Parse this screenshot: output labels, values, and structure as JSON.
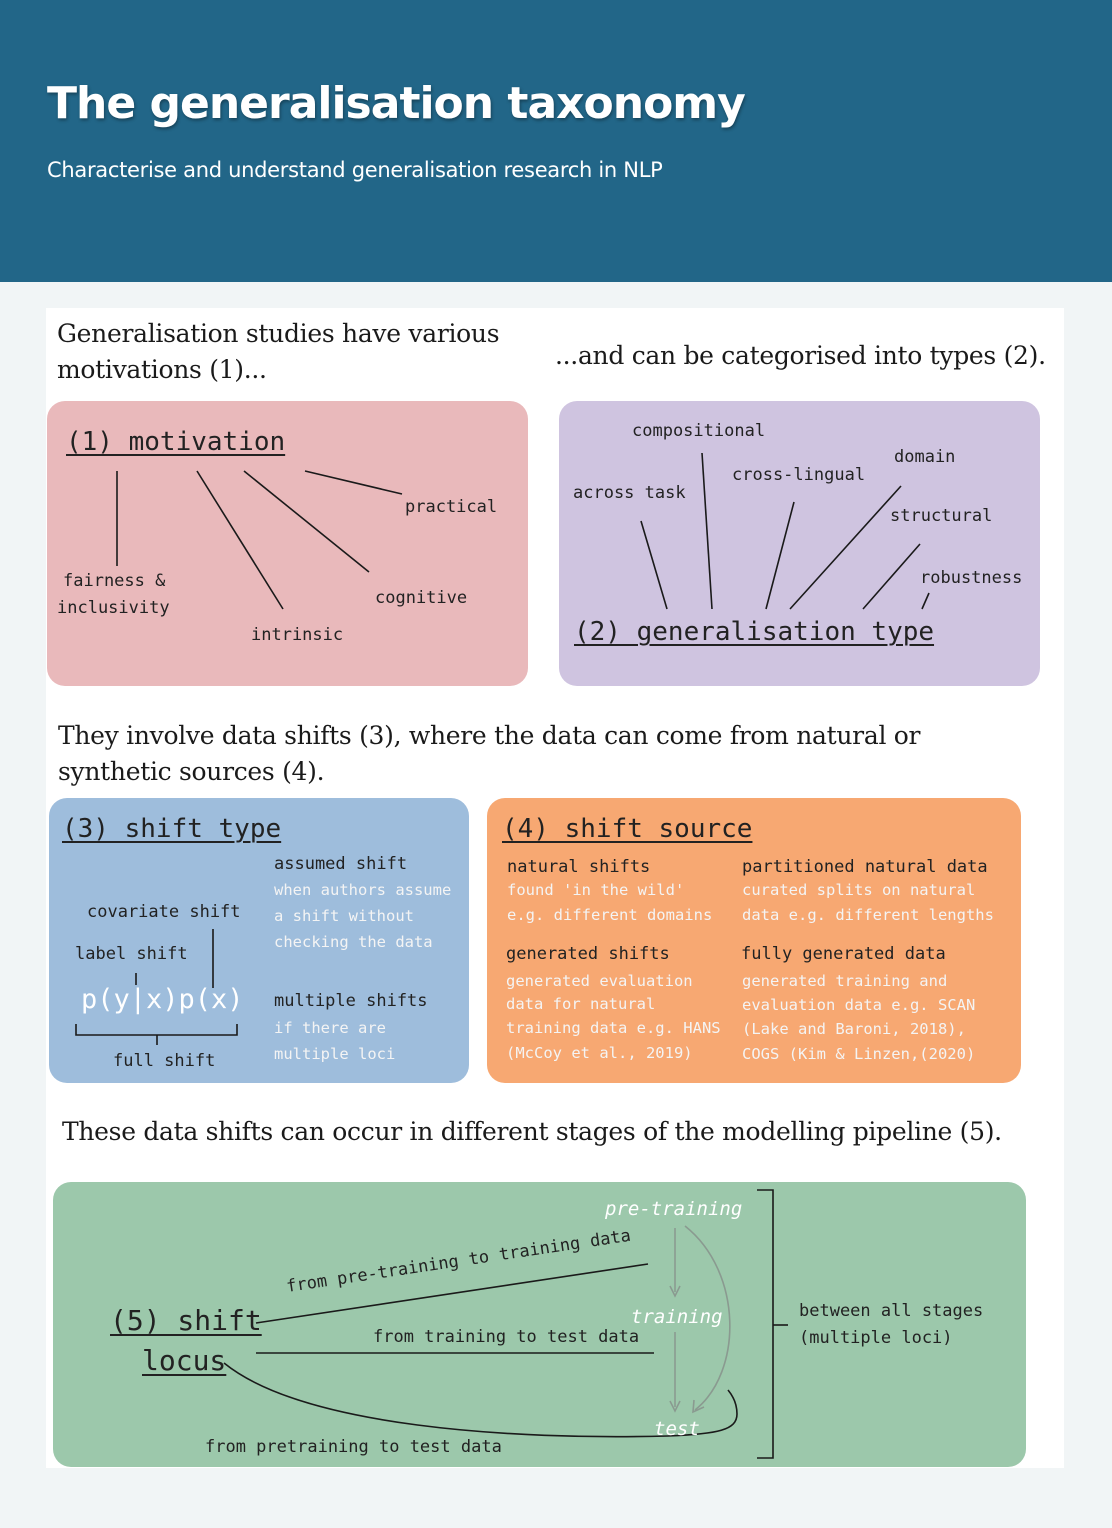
{
  "header": {
    "title": "The generalisation taxonomy",
    "subtitle": "Characterise and understand generalisation research in NLP"
  },
  "intro": {
    "motivations": "Generalisation studies have various motivations (1)...",
    "types": "...and can be categorised into types (2).",
    "shifts": "They involve data shifts (3), where the data can come from natural or synthetic sources (4).",
    "stages": "These data shifts can occur in different stages of the modelling pipeline (5)."
  },
  "motivation_box": {
    "title": "(1) motivation",
    "items": [
      "practical",
      "cognitive",
      "intrinsic",
      "fairness &",
      "inclusivity"
    ],
    "color": "#e9b9bb"
  },
  "type_box": {
    "title": "(2) generalisation type",
    "items": [
      "compositional",
      "across task",
      "cross-lingual",
      "domain",
      "structural",
      "robustness"
    ],
    "color": "#cfc4e0"
  },
  "shift_type_box": {
    "title": "(3) shift type",
    "covariate": "covariate shift",
    "label": "label shift",
    "formula": "p(y|x)p(x)",
    "full": "full shift",
    "assumed_title": "assumed shift",
    "assumed_desc": [
      "when authors assume",
      "a shift without",
      "checking the data"
    ],
    "multiple_title": "multiple shifts",
    "multiple_desc": [
      "if there are",
      "multiple loci"
    ],
    "color": "#9ebddc"
  },
  "shift_source_box": {
    "title": "(4) shift source",
    "natural_title": "natural shifts",
    "natural_desc": [
      "found 'in the wild'",
      "e.g. different domains"
    ],
    "partitioned_title": "partitioned natural data",
    "partitioned_desc": [
      "curated splits on natural",
      "data e.g. different lengths"
    ],
    "generated_title": "generated shifts",
    "generated_desc": [
      "generated evaluation",
      "data for natural",
      "training data e.g. HANS",
      "(McCoy et al., 2019)"
    ],
    "fully_title": "fully generated data",
    "fully_desc": [
      "generated training and",
      "evaluation data e.g. SCAN",
      "(Lake and Baroni, 2018),",
      "COGS (Kim & Linzen,(2020)"
    ],
    "color": "#f7a872"
  },
  "locus_box": {
    "title_line1": "(5) shift",
    "title_line2": "locus",
    "stage_pretraining": "pre-training",
    "stage_training": "training",
    "stage_test": "test",
    "edge_pre_to_train": "from pre-training to training data",
    "edge_train_to_test": "from training to test data",
    "edge_pre_to_test": "from pretraining to test data",
    "between_line1": "between all stages",
    "between_line2": "(multiple loci)",
    "color": "#9cc8ab"
  }
}
